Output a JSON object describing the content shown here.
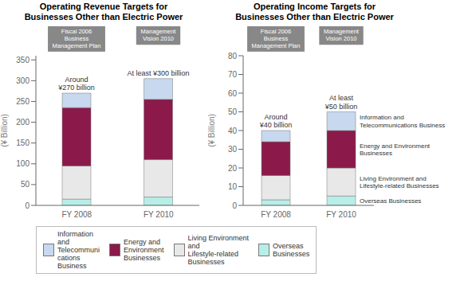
{
  "chart_data": [
    {
      "type": "bar",
      "stacked": true,
      "title": "Operating Revenue Targets for\nBusinesses Other than Electric Power",
      "ylabel": "(¥ Billion)",
      "categories": [
        "FY 2008",
        "FY 2010"
      ],
      "series": [
        {
          "name": "Overseas\nBusinesses",
          "color": "#b8eee8",
          "values": [
            15,
            20
          ]
        },
        {
          "name": "Living Environment\nand\nLifestyle-related\nBusinesses",
          "color": "#e8e8e8",
          "values": [
            80,
            90
          ]
        },
        {
          "name": "Energy and\nEnvironment\nBusinesses",
          "color": "#8b1a4a",
          "values": [
            140,
            145
          ]
        },
        {
          "name": "Information\nand\nTelecommuni\ncations\nBusiness",
          "color": "#c8d8ee",
          "values": [
            35,
            50
          ]
        }
      ],
      "ylim": [
        0,
        360
      ],
      "yticks": [
        0,
        50,
        100,
        150,
        200,
        250,
        300,
        350
      ],
      "grid": false,
      "legend": "bottom",
      "annotations": [
        {
          "text": "Around\n¥270 billion",
          "category": "FY 2008"
        },
        {
          "text": "At least ¥300 billion",
          "category": "FY 2010"
        }
      ],
      "box_labels": [
        "Fiscal 2006\nBusiness\nManagement Plan",
        "Management\nVision 2010"
      ]
    },
    {
      "type": "bar",
      "stacked": true,
      "title": "Operating Income Targets for\nBusinesses Other than Electric Power",
      "ylabel": "(¥ Billion)",
      "categories": [
        "FY 2008",
        "FY 2010"
      ],
      "series": [
        {
          "name": "Overseas Businesses",
          "color": "#b8eee8",
          "values": [
            3,
            5
          ]
        },
        {
          "name": "Living Environment and\nLifestyle-related Businesses",
          "color": "#e8e8e8",
          "values": [
            13,
            15
          ]
        },
        {
          "name": "Energy and Environment\nBusinesses",
          "color": "#8b1a4a",
          "values": [
            18,
            20
          ]
        },
        {
          "name": "Information and\nTelecommunications Business",
          "color": "#c8d8ee",
          "values": [
            6,
            10
          ]
        }
      ],
      "ylim": [
        0,
        80
      ],
      "yticks": [
        0,
        10,
        20,
        30,
        40,
        50,
        60,
        70,
        80
      ],
      "grid": false,
      "annotations": [
        {
          "text": "Around\n¥40 billion",
          "category": "FY 2008"
        },
        {
          "text": "At least\n¥50 billion",
          "category": "FY 2010"
        }
      ],
      "box_labels": [
        "Fiscal 2006\nBusiness\nManagement Plan",
        "Management\nVision 2010"
      ]
    }
  ]
}
